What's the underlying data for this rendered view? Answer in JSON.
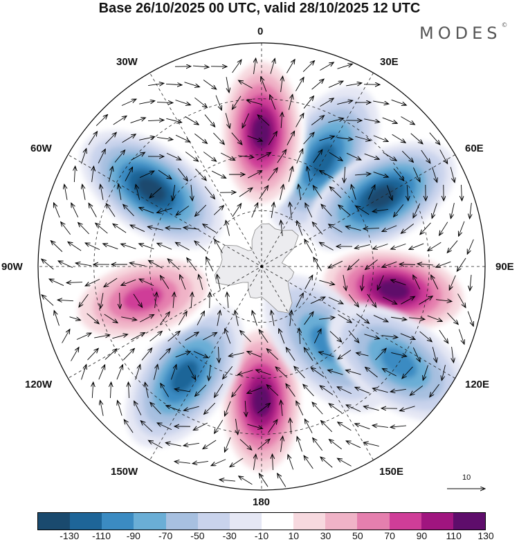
{
  "title": "Base 26/10/2025 00 UTC, valid 28/10/2025 12 UTC",
  "brand": "MODES",
  "brand_mark": "©",
  "longitude_labels": {
    "lon_0": "0",
    "lon_30e": "30E",
    "lon_60e": "60E",
    "lon_90e": "90E",
    "lon_120e": "120E",
    "lon_150e": "150E",
    "lon_180": "180",
    "lon_150w": "150W",
    "lon_120w": "120W",
    "lon_90w": "90W",
    "lon_60w": "60W",
    "lon_30w": "30W"
  },
  "vector_scale": {
    "value": "10",
    "icon": "arrow-right-icon"
  },
  "colorbar": {
    "colors": [
      "#1a4a6e",
      "#1e6598",
      "#3b8bc2",
      "#6aaed6",
      "#a7c0e0",
      "#c9d3ec",
      "#e5e7f4",
      "#ffffff",
      "#f7d9df",
      "#f0b3c7",
      "#e57fae",
      "#cf3d98",
      "#a0157f",
      "#5e0d6b"
    ],
    "tick_labels": [
      "-130",
      "-110",
      "-90",
      "-70",
      "-50",
      "-30",
      "-10",
      "10",
      "30",
      "50",
      "70",
      "90",
      "110",
      "130"
    ]
  },
  "anomaly_centers": [
    {
      "lon_deg": 180,
      "colat_frac": 0.6,
      "value": 135,
      "label": "positive"
    },
    {
      "lon_deg": 30,
      "colat_frac": 0.55,
      "value": -120,
      "label": "negative"
    },
    {
      "lon_deg": 60,
      "colat_frac": 0.62,
      "value": -135,
      "label": "negative"
    },
    {
      "lon_deg": 100,
      "colat_frac": 0.6,
      "value": 130,
      "label": "positive"
    },
    {
      "lon_deg": 140,
      "colat_frac": 0.45,
      "value": -90,
      "label": "negative"
    },
    {
      "lon_deg": 0,
      "colat_frac": 0.6,
      "value": 135,
      "label": "positive"
    },
    {
      "lon_deg": 215,
      "colat_frac": 0.6,
      "value": -125,
      "label": "negative"
    },
    {
      "lon_deg": 305,
      "colat_frac": 0.6,
      "value": -135,
      "label": "negative"
    },
    {
      "lon_deg": 255,
      "colat_frac": 0.55,
      "value": 105,
      "label": "positive"
    },
    {
      "lon_deg": 125,
      "colat_frac": 0.75,
      "value": -90,
      "label": "negative"
    }
  ]
}
